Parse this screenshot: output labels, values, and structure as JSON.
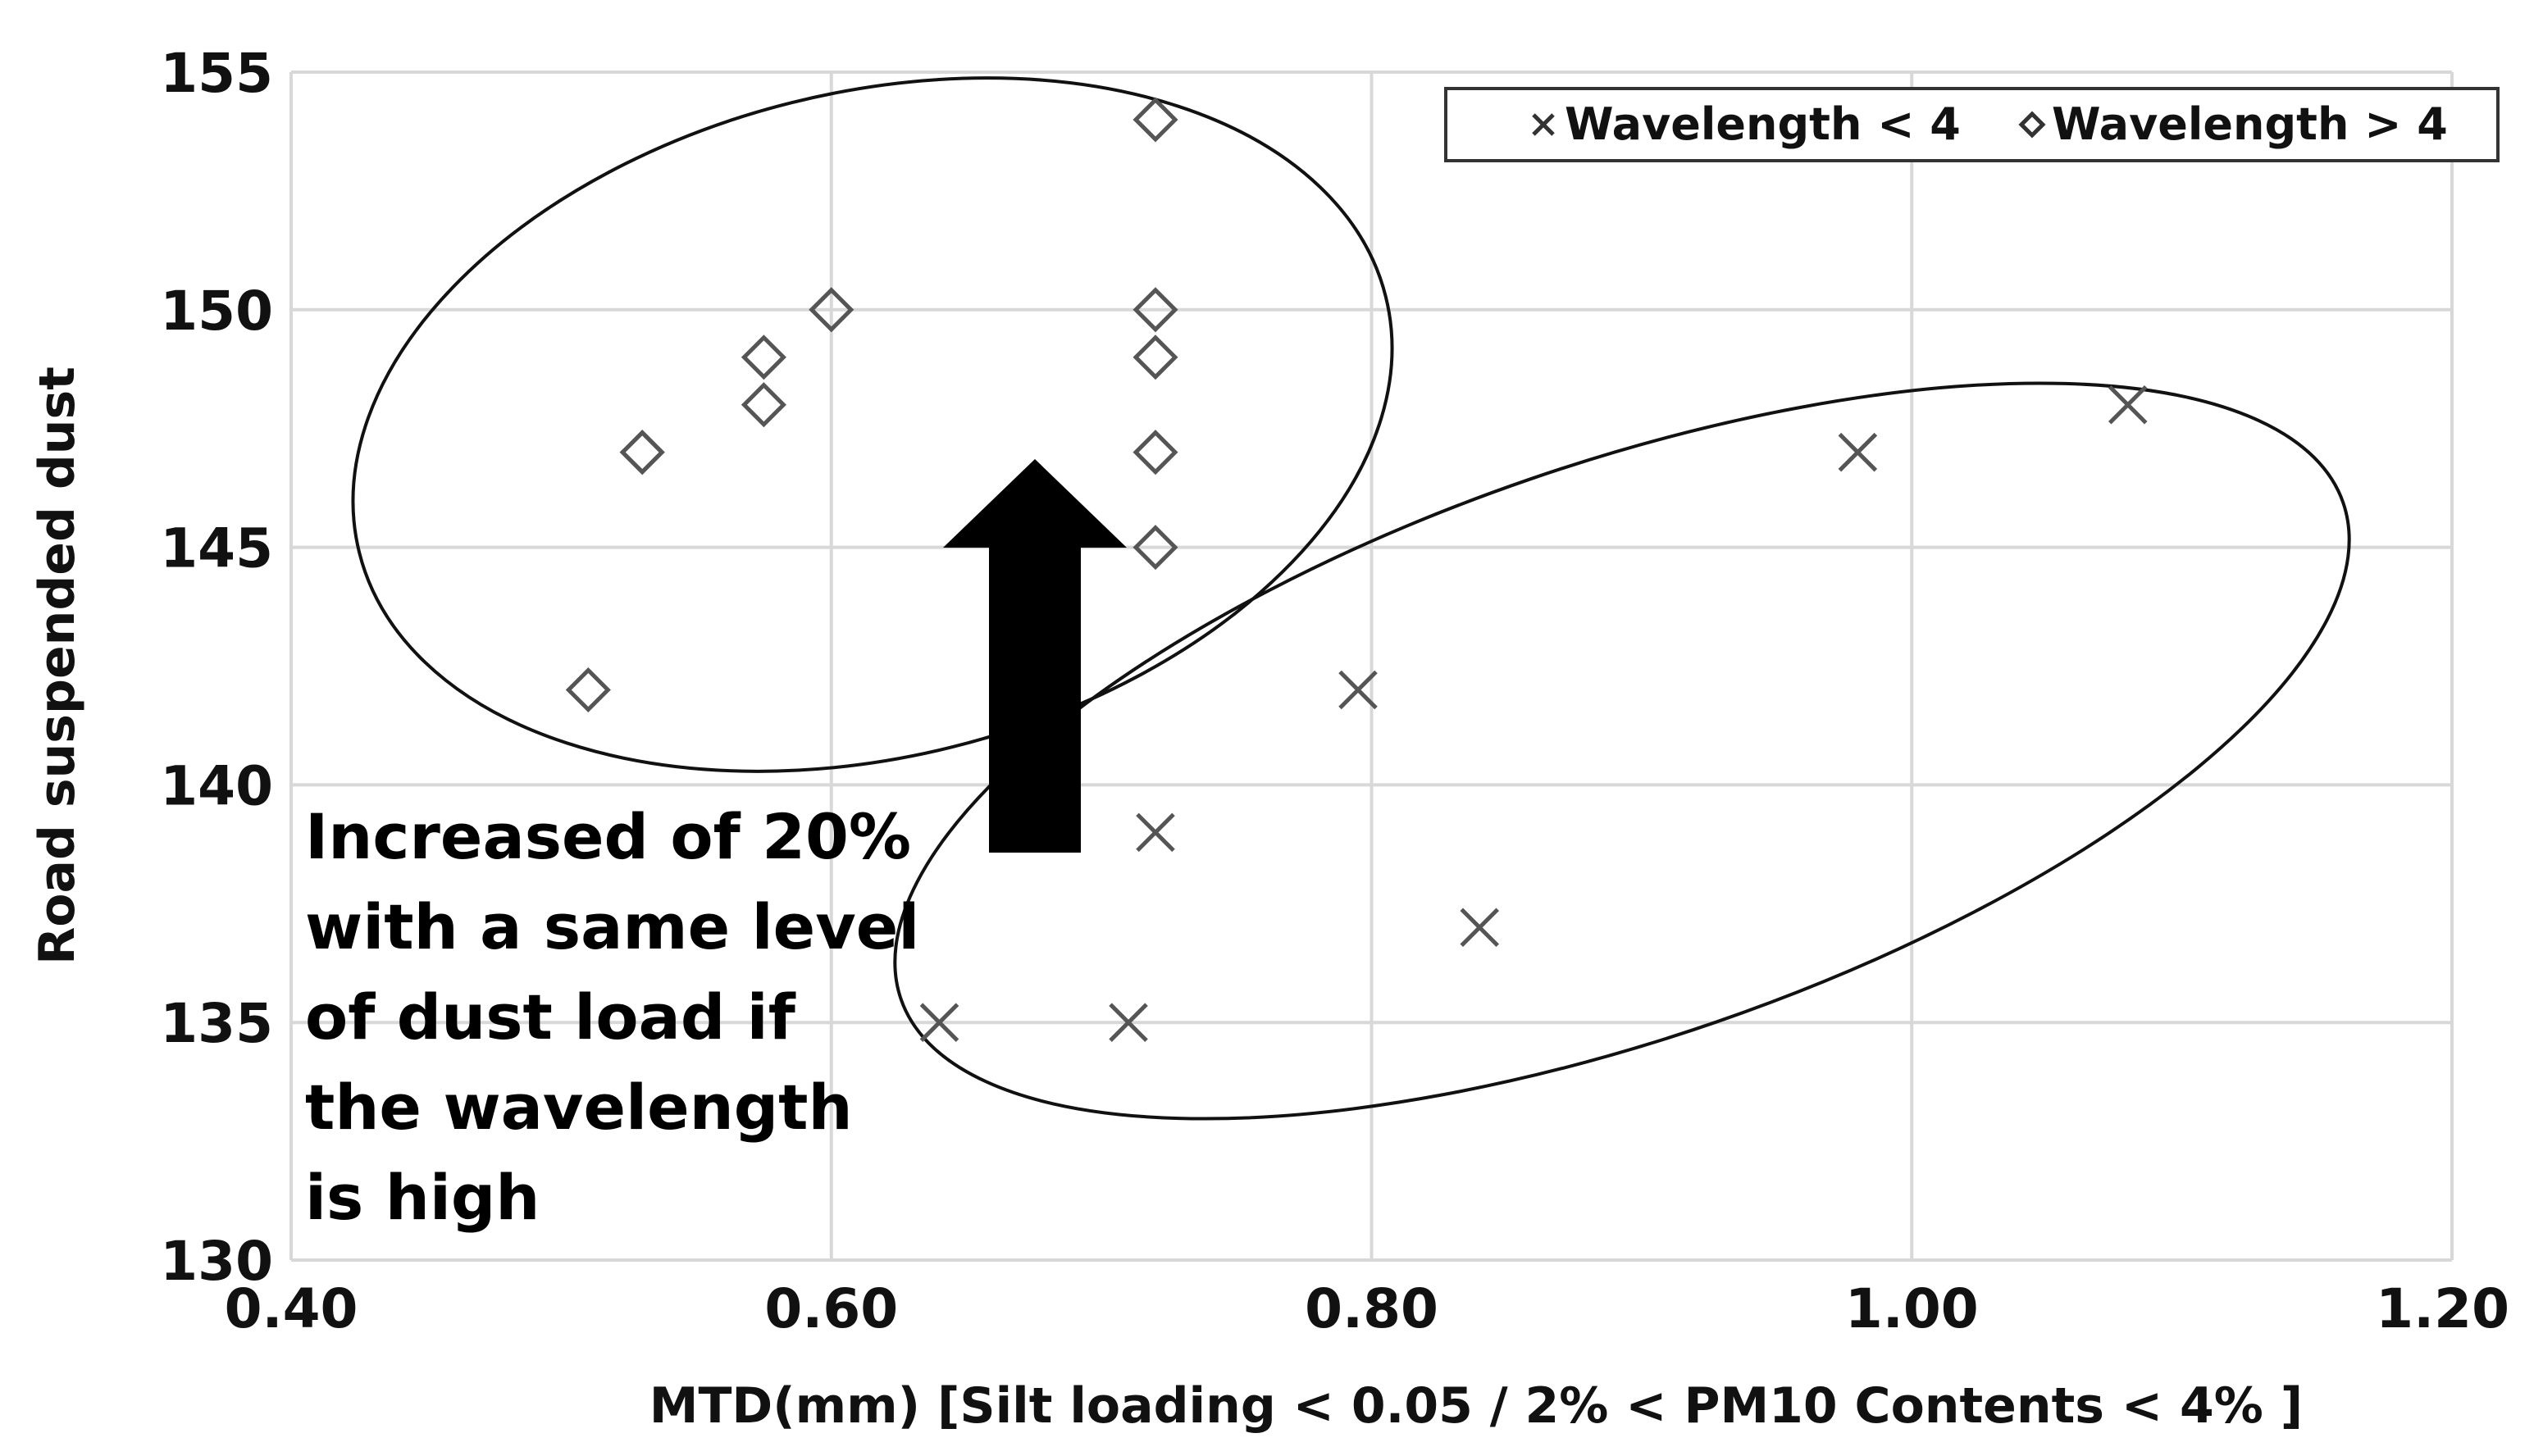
{
  "chart_data": {
    "type": "scatter",
    "title": "",
    "xlabel": "MTD(mm) [Silt loading < 0.05 / 2% < PM10 Contents < 4% ]",
    "ylabel": "Road suspended dust",
    "xlim": [
      0.4,
      1.2
    ],
    "ylim": [
      130,
      155
    ],
    "xticks": [
      "0.40",
      "0.60",
      "0.80",
      "1.00",
      "1.20"
    ],
    "yticks": [
      "130",
      "135",
      "140",
      "145",
      "150",
      "155"
    ],
    "grid": true,
    "legend_position": "top-right",
    "series": [
      {
        "name": "Wavelength < 4",
        "marker": "x",
        "color": "#555555",
        "x": [
          0.64,
          0.71,
          0.72,
          0.795,
          0.84,
          0.98,
          1.08
        ],
        "y": [
          135,
          135,
          139,
          142,
          137,
          147,
          148
        ]
      },
      {
        "name": "Wavelength > 4",
        "marker": "diamond",
        "color": "#555555",
        "x": [
          0.51,
          0.53,
          0.53,
          0.575,
          0.575,
          0.6,
          0.72,
          0.72,
          0.72,
          0.72,
          0.72
        ],
        "y": [
          142,
          147,
          147,
          148,
          149,
          150,
          154,
          150,
          149,
          147,
          145
        ]
      }
    ],
    "annotation": {
      "lines": [
        "Increased of 20%",
        "with a same level",
        "of dust load if",
        "the wavelength",
        "is high"
      ]
    }
  }
}
